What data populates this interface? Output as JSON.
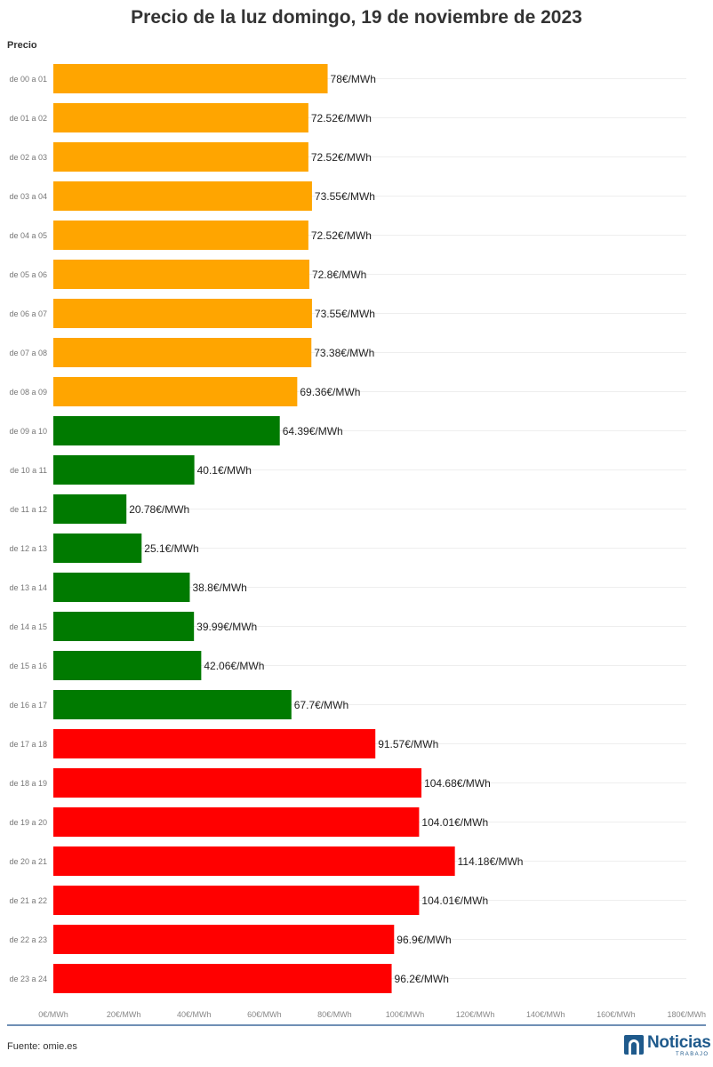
{
  "chart_data": {
    "type": "bar",
    "orientation": "horizontal",
    "title": "Precio de la luz domingo, 19 de noviembre de 2023",
    "ylabel": "Precio",
    "xlabel": "",
    "xlim": [
      0,
      180
    ],
    "ticks": [
      {
        "value": 0,
        "label": "0€/MWh"
      },
      {
        "value": 20,
        "label": "20€/MWh"
      },
      {
        "value": 40,
        "label": "40€/MWh"
      },
      {
        "value": 60,
        "label": "60€/MWh"
      },
      {
        "value": 80,
        "label": "80€/MWh"
      },
      {
        "value": 100,
        "label": "100€/MWh"
      },
      {
        "value": 120,
        "label": "120€/MWh"
      },
      {
        "value": 140,
        "label": "140€/MWh"
      },
      {
        "value": 160,
        "label": "160€/MWh"
      },
      {
        "value": 180,
        "label": "180€/MWh"
      }
    ],
    "grid": true,
    "legend": "none",
    "colors": {
      "orange": "#ffa500",
      "green": "#007a00",
      "red": "#ff0000"
    },
    "bars": [
      {
        "category": "de 00 a 01",
        "value": 78,
        "label": "78€/MWh",
        "color": "orange"
      },
      {
        "category": "de 01 a 02",
        "value": 72.52,
        "label": "72.52€/MWh",
        "color": "orange"
      },
      {
        "category": "de 02 a 03",
        "value": 72.52,
        "label": "72.52€/MWh",
        "color": "orange"
      },
      {
        "category": "de 03 a 04",
        "value": 73.55,
        "label": "73.55€/MWh",
        "color": "orange"
      },
      {
        "category": "de 04 a 05",
        "value": 72.52,
        "label": "72.52€/MWh",
        "color": "orange"
      },
      {
        "category": "de 05 a 06",
        "value": 72.8,
        "label": "72.8€/MWh",
        "color": "orange"
      },
      {
        "category": "de 06 a 07",
        "value": 73.55,
        "label": "73.55€/MWh",
        "color": "orange"
      },
      {
        "category": "de 07 a 08",
        "value": 73.38,
        "label": "73.38€/MWh",
        "color": "orange"
      },
      {
        "category": "de 08 a 09",
        "value": 69.36,
        "label": "69.36€/MWh",
        "color": "orange"
      },
      {
        "category": "de 09 a 10",
        "value": 64.39,
        "label": "64.39€/MWh",
        "color": "green"
      },
      {
        "category": "de 10 a 11",
        "value": 40.1,
        "label": "40.1€/MWh",
        "color": "green"
      },
      {
        "category": "de 11 a 12",
        "value": 20.78,
        "label": "20.78€/MWh",
        "color": "green"
      },
      {
        "category": "de 12 a 13",
        "value": 25.1,
        "label": "25.1€/MWh",
        "color": "green"
      },
      {
        "category": "de 13 a 14",
        "value": 38.8,
        "label": "38.8€/MWh",
        "color": "green"
      },
      {
        "category": "de 14 a 15",
        "value": 39.99,
        "label": "39.99€/MWh",
        "color": "green"
      },
      {
        "category": "de 15 a 16",
        "value": 42.06,
        "label": "42.06€/MWh",
        "color": "green"
      },
      {
        "category": "de 16 a 17",
        "value": 67.7,
        "label": "67.7€/MWh",
        "color": "green"
      },
      {
        "category": "de 17 a 18",
        "value": 91.57,
        "label": "91.57€/MWh",
        "color": "red"
      },
      {
        "category": "de 18 a 19",
        "value": 104.68,
        "label": "104.68€/MWh",
        "color": "red"
      },
      {
        "category": "de 19 a 20",
        "value": 104.01,
        "label": "104.01€/MWh",
        "color": "red"
      },
      {
        "category": "de 20 a 21",
        "value": 114.18,
        "label": "114.18€/MWh",
        "color": "red"
      },
      {
        "category": "de 21 a 22",
        "value": 104.01,
        "label": "104.01€/MWh",
        "color": "red"
      },
      {
        "category": "de 22 a 23",
        "value": 96.9,
        "label": "96.9€/MWh",
        "color": "red"
      },
      {
        "category": "de 23 a 24",
        "value": 96.2,
        "label": "96.2€/MWh",
        "color": "red"
      }
    ]
  },
  "footer": {
    "source": "Fuente: omie.es",
    "logo_text": "Noticias",
    "logo_subtext": "TRABAJO"
  }
}
